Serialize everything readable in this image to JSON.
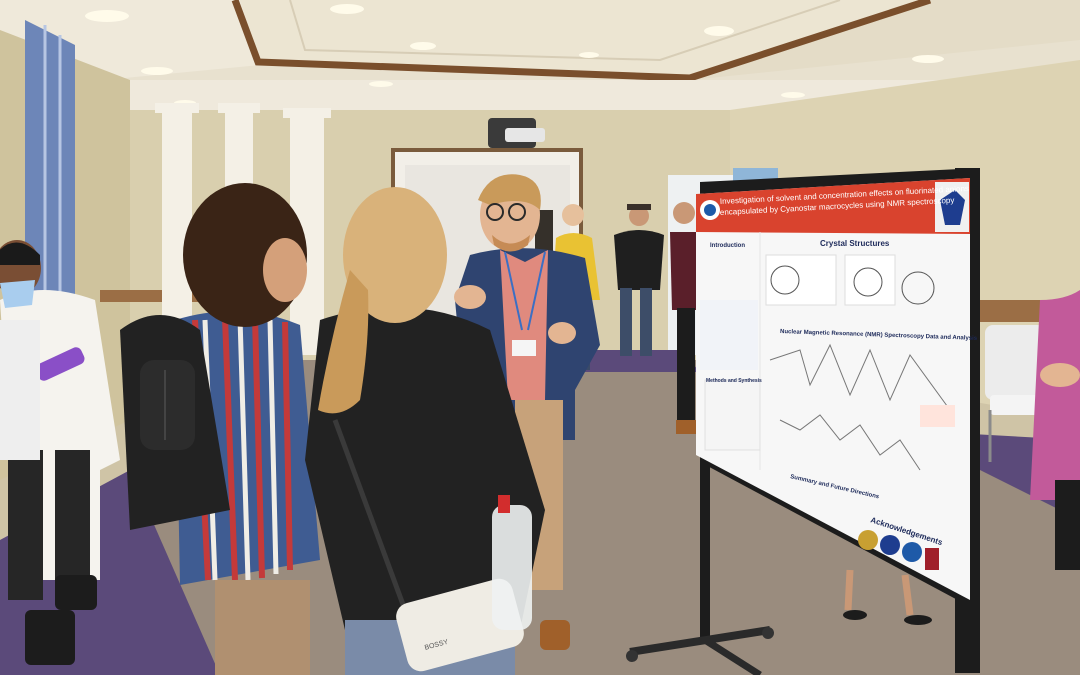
{
  "poster": {
    "title_line1": "Investigation of solvent and concentration effects on fluorinated anions",
    "title_line2": "encapsulated by Cyanostar macrocycles using NMR spectroscopy",
    "sections": {
      "intro": "Introduction",
      "crystal": "Crystal Structures",
      "nmr": "Nuclear Magnetic Resonance (NMR) Spectroscopy Data and Analysis",
      "methods": "Methods and Synthesis",
      "summary": "Summary and Future Directions",
      "ack": "Acknowledgements"
    }
  },
  "bag_label": "BOSSY",
  "colors": {
    "wall": "#d9cfae",
    "carpet": "#9a8c7e",
    "purple_floor": "#5b4a7a",
    "poster_header": "#d9432e",
    "board_frame": "#1c1c1c",
    "blazer": "#2f4470"
  }
}
